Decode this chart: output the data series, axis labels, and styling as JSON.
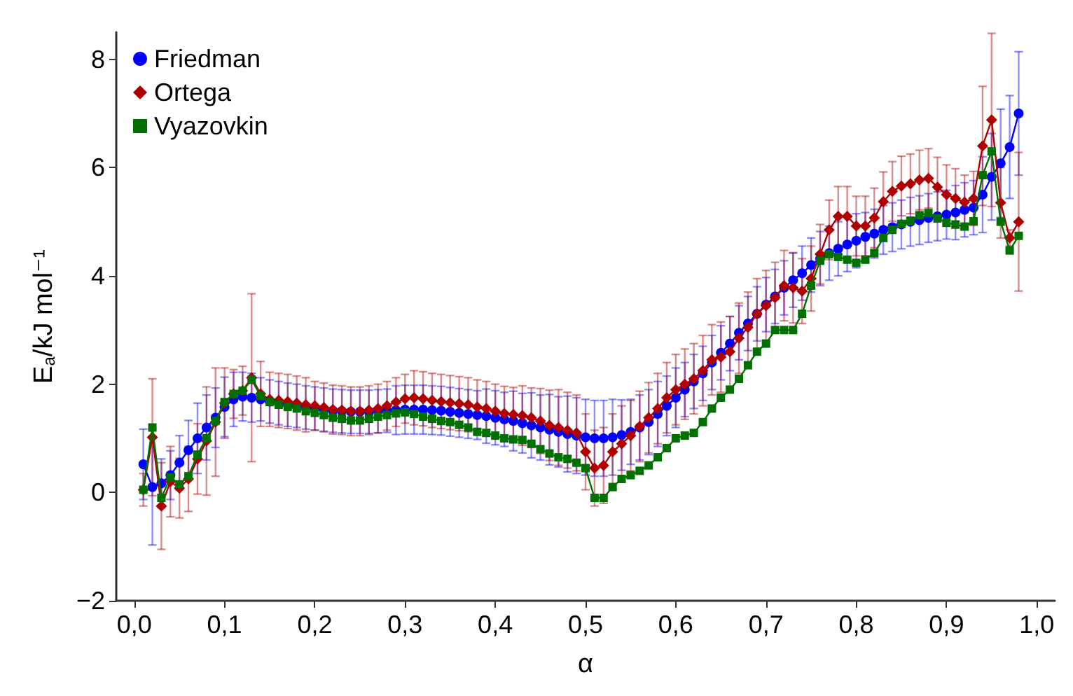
{
  "chart_data": {
    "type": "line",
    "xlabel": "α",
    "ylabel": "E$_{a}$/kJ mol⁻¹",
    "xlim": [
      -0.02,
      1.02
    ],
    "ylim": [
      -2,
      8.5
    ],
    "xticks": [
      {
        "value": 0,
        "label": "0,0"
      },
      {
        "value": 0.1,
        "label": "0,1"
      },
      {
        "value": 0.2,
        "label": "0,2"
      },
      {
        "value": 0.3,
        "label": "0,3"
      },
      {
        "value": 0.4,
        "label": "0,4"
      },
      {
        "value": 0.5,
        "label": "0,5"
      },
      {
        "value": 0.6,
        "label": "0,6"
      },
      {
        "value": 0.7,
        "label": "0,7"
      },
      {
        "value": 0.8,
        "label": "0,8"
      },
      {
        "value": 0.9,
        "label": "0,9"
      },
      {
        "value": 1,
        "label": "1,0"
      }
    ],
    "yticks": [
      {
        "value": -2,
        "label": "−2"
      },
      0,
      2,
      4,
      6,
      8
    ],
    "grid": false,
    "legend": "top left",
    "x": [
      0.01,
      0.02,
      0.03,
      0.04,
      0.05,
      0.06,
      0.07,
      0.08,
      0.09,
      0.1,
      0.11,
      0.12,
      0.13,
      0.14,
      0.15,
      0.16,
      0.17,
      0.18,
      0.19,
      0.2,
      0.21,
      0.22,
      0.23,
      0.24,
      0.25,
      0.26,
      0.27,
      0.28,
      0.29,
      0.3,
      0.31,
      0.32,
      0.33,
      0.34,
      0.35,
      0.36,
      0.37,
      0.38,
      0.39,
      0.4,
      0.41,
      0.42,
      0.43,
      0.44,
      0.45,
      0.46,
      0.47,
      0.48,
      0.49,
      0.5,
      0.51,
      0.52,
      0.53,
      0.54,
      0.55,
      0.56,
      0.57,
      0.58,
      0.59,
      0.6,
      0.61,
      0.62,
      0.63,
      0.64,
      0.65,
      0.66,
      0.67,
      0.68,
      0.69,
      0.7,
      0.71,
      0.72,
      0.73,
      0.74,
      0.75,
      0.76,
      0.77,
      0.78,
      0.79,
      0.8,
      0.81,
      0.82,
      0.83,
      0.84,
      0.85,
      0.86,
      0.87,
      0.88,
      0.89,
      0.9,
      0.91,
      0.92,
      0.93,
      0.94,
      0.95,
      0.96,
      0.97,
      0.98
    ],
    "series": [
      {
        "name": "Friedman",
        "color": "#0000ff",
        "marker": "circle",
        "values": [
          0.52,
          0.1,
          0.17,
          0.32,
          0.55,
          0.78,
          1.0,
          1.2,
          1.38,
          1.58,
          1.72,
          1.77,
          1.75,
          1.72,
          1.68,
          1.65,
          1.62,
          1.6,
          1.57,
          1.55,
          1.53,
          1.51,
          1.5,
          1.49,
          1.49,
          1.49,
          1.5,
          1.51,
          1.52,
          1.53,
          1.53,
          1.53,
          1.52,
          1.51,
          1.49,
          1.47,
          1.45,
          1.43,
          1.41,
          1.38,
          1.35,
          1.32,
          1.28,
          1.24,
          1.2,
          1.16,
          1.12,
          1.08,
          1.05,
          1.02,
          1.0,
          1.0,
          1.02,
          1.06,
          1.12,
          1.2,
          1.3,
          1.45,
          1.6,
          1.75,
          1.9,
          2.05,
          2.2,
          2.4,
          2.58,
          2.75,
          2.95,
          3.12,
          3.3,
          3.47,
          3.62,
          3.78,
          3.92,
          4.05,
          4.2,
          4.32,
          4.42,
          4.5,
          4.58,
          4.65,
          4.72,
          4.78,
          4.85,
          4.9,
          4.95,
          5.0,
          5.03,
          5.07,
          5.1,
          5.13,
          5.17,
          5.22,
          5.26,
          5.5,
          5.83,
          6.08,
          6.38,
          7.0
        ],
        "errors": [
          0.65,
          1.07,
          0.45,
          0.45,
          0.5,
          0.55,
          0.65,
          0.6,
          0.55,
          0.55,
          0.5,
          0.45,
          0.45,
          0.4,
          0.4,
          0.4,
          0.4,
          0.4,
          0.4,
          0.4,
          0.4,
          0.4,
          0.4,
          0.4,
          0.4,
          0.4,
          0.4,
          0.4,
          0.45,
          0.45,
          0.45,
          0.45,
          0.45,
          0.45,
          0.45,
          0.45,
          0.45,
          0.45,
          0.5,
          0.5,
          0.5,
          0.55,
          0.55,
          0.6,
          0.6,
          0.65,
          0.65,
          0.7,
          0.7,
          0.7,
          0.7,
          0.7,
          0.7,
          0.65,
          0.6,
          0.6,
          0.6,
          0.6,
          0.55,
          0.55,
          0.5,
          0.5,
          0.5,
          0.5,
          0.5,
          0.5,
          0.5,
          0.5,
          0.5,
          0.5,
          0.5,
          0.5,
          0.5,
          0.5,
          0.5,
          0.5,
          0.5,
          0.5,
          0.5,
          0.5,
          0.45,
          0.45,
          0.45,
          0.45,
          0.45,
          0.45,
          0.45,
          0.45,
          0.45,
          0.45,
          0.5,
          0.5,
          0.5,
          0.7,
          0.8,
          1.0,
          0.95,
          1.14
        ]
      },
      {
        "name": "Ortega",
        "color": "#b00000",
        "marker": "diamond",
        "values": [
          0.05,
          1.02,
          -0.25,
          0.2,
          0.08,
          0.25,
          0.62,
          0.95,
          1.3,
          1.65,
          1.82,
          1.88,
          2.12,
          1.82,
          1.72,
          1.7,
          1.68,
          1.65,
          1.62,
          1.6,
          1.57,
          1.53,
          1.52,
          1.5,
          1.5,
          1.52,
          1.55,
          1.6,
          1.67,
          1.73,
          1.75,
          1.73,
          1.7,
          1.68,
          1.66,
          1.64,
          1.62,
          1.58,
          1.55,
          1.5,
          1.46,
          1.44,
          1.42,
          1.38,
          1.32,
          1.24,
          1.2,
          1.15,
          1.1,
          0.75,
          0.45,
          0.5,
          0.75,
          0.9,
          1.05,
          1.22,
          1.38,
          1.55,
          1.75,
          1.9,
          2.0,
          2.1,
          2.25,
          2.45,
          2.5,
          2.6,
          2.85,
          3.05,
          3.3,
          3.45,
          3.6,
          3.82,
          3.78,
          3.72,
          3.95,
          4.4,
          4.85,
          5.1,
          5.1,
          4.92,
          4.92,
          5.07,
          5.37,
          5.56,
          5.66,
          5.7,
          5.77,
          5.8,
          5.64,
          5.5,
          5.43,
          5.36,
          5.43,
          6.4,
          6.88,
          5.35,
          4.7,
          5.0
        ],
        "errors": [
          0.3,
          1.08,
          0.8,
          0.65,
          0.55,
          0.6,
          0.65,
          1.0,
          1.0,
          0.65,
          0.45,
          0.45,
          1.55,
          0.6,
          0.5,
          0.5,
          0.5,
          0.5,
          0.5,
          0.45,
          0.45,
          0.45,
          0.45,
          0.45,
          0.45,
          0.45,
          0.45,
          0.45,
          0.45,
          0.45,
          0.5,
          0.5,
          0.5,
          0.5,
          0.5,
          0.5,
          0.5,
          0.5,
          0.5,
          0.5,
          0.5,
          0.5,
          0.55,
          0.55,
          0.6,
          0.65,
          0.7,
          0.7,
          0.7,
          0.7,
          0.7,
          0.7,
          0.7,
          0.7,
          0.65,
          0.65,
          0.65,
          0.65,
          0.65,
          0.65,
          0.65,
          0.65,
          0.65,
          0.65,
          0.65,
          0.65,
          0.65,
          0.65,
          0.65,
          0.65,
          0.65,
          0.65,
          0.65,
          0.6,
          0.6,
          0.55,
          0.55,
          0.55,
          0.55,
          0.55,
          0.55,
          0.55,
          0.55,
          0.55,
          0.55,
          0.55,
          0.55,
          0.55,
          0.55,
          0.55,
          0.55,
          0.5,
          0.5,
          1.1,
          1.6,
          0.65,
          0.15,
          1.28
        ]
      },
      {
        "name": "Vyazovkin",
        "color": "#007000",
        "marker": "square",
        "values": [
          0.05,
          1.2,
          -0.1,
          0.28,
          0.15,
          0.3,
          0.7,
          1.0,
          1.32,
          1.67,
          1.82,
          1.88,
          2.08,
          1.78,
          1.67,
          1.62,
          1.58,
          1.55,
          1.5,
          1.47,
          1.43,
          1.38,
          1.36,
          1.33,
          1.33,
          1.36,
          1.4,
          1.43,
          1.46,
          1.48,
          1.45,
          1.4,
          1.36,
          1.32,
          1.3,
          1.25,
          1.2,
          1.12,
          1.1,
          1.05,
          1.0,
          0.98,
          0.97,
          0.9,
          0.8,
          0.72,
          0.65,
          0.62,
          0.55,
          0.45,
          -0.1,
          -0.1,
          0.1,
          0.25,
          0.32,
          0.4,
          0.5,
          0.65,
          0.82,
          1.0,
          1.05,
          1.1,
          1.3,
          1.55,
          1.75,
          1.9,
          2.1,
          2.35,
          2.6,
          2.75,
          3.0,
          3.0,
          3.0,
          3.3,
          3.82,
          4.28,
          4.4,
          4.35,
          4.3,
          4.24,
          4.3,
          4.42,
          4.7,
          4.85,
          4.96,
          5.02,
          5.12,
          5.16,
          5.06,
          4.98,
          4.95,
          4.91,
          5.01,
          5.86,
          6.3,
          5.0,
          4.47,
          4.74
        ]
      }
    ]
  }
}
